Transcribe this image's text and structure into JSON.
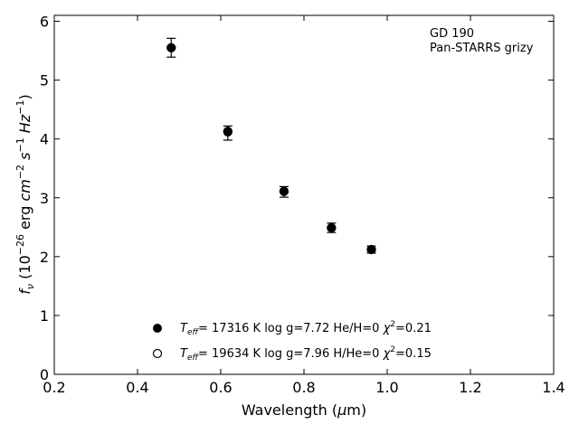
{
  "chart_data": {
    "type": "scatter",
    "title": "",
    "xlabel": "Wavelength (μm)",
    "ylabel": "f_ν (10^-26 erg cm^-2 s^-1 Hz^-1)",
    "xlim": [
      0.2,
      1.4
    ],
    "ylim": [
      0,
      6.1
    ],
    "x_ticks": [
      0.2,
      0.4,
      0.6,
      0.8,
      1.0,
      1.2,
      1.4
    ],
    "x_tick_labels": [
      "0.2",
      "0.4",
      "0.6",
      "0.8",
      "1.0",
      "1.2",
      "1.4"
    ],
    "y_ticks": [
      0,
      1,
      2,
      3,
      4,
      5,
      6
    ],
    "y_tick_labels": [
      "0",
      "1",
      "2",
      "3",
      "4",
      "5",
      "6"
    ],
    "grid": false,
    "annotation": [
      "GD 190",
      "Pan-STARRS grizy"
    ],
    "observed": {
      "x": [
        0.481,
        0.617,
        0.752,
        0.866,
        0.962
      ],
      "y": [
        5.55,
        4.1,
        3.1,
        2.49,
        2.12
      ],
      "err": [
        0.16,
        0.12,
        0.09,
        0.08,
        0.06
      ]
    },
    "series": [
      {
        "marker": "filled-circle",
        "legend": {
          "teff_value": "= 17316 K",
          "params": "log g=7.72  He/H=0",
          "chi_value": "=0.21"
        },
        "x": [
          0.481,
          0.617,
          0.752,
          0.866,
          0.962
        ],
        "y": [
          5.55,
          4.13,
          3.11,
          2.49,
          2.12
        ]
      },
      {
        "marker": "open-circle",
        "legend": {
          "teff_value": "= 19634 K",
          "params": "log g=7.96  H/He=0",
          "chi_value": "=0.15"
        },
        "x": [
          0.481,
          0.617,
          0.752,
          0.866,
          0.962
        ],
        "y": [
          5.55,
          4.12,
          3.11,
          2.49,
          2.12
        ]
      }
    ],
    "legend_position": "bottom-center",
    "colors": {
      "marker": "#000000",
      "open_fill": "#ffffff"
    }
  }
}
